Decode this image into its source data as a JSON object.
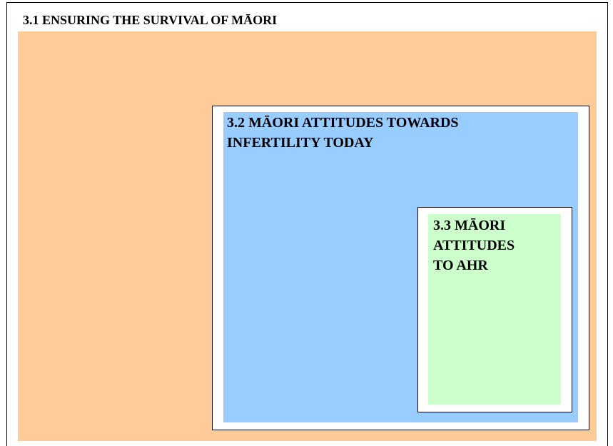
{
  "boxes": [
    {
      "lines": [
        "3.1  ENSURING THE SURVIVAL OF MĀORI"
      ]
    },
    {
      "lines": [
        "3.2  MĀORI ATTITUDES TOWARDS",
        "INFERTILITY TODAY"
      ]
    },
    {
      "lines": [
        "3.3  MĀORI",
        "ATTITUDES",
        "TO AHR"
      ]
    }
  ]
}
